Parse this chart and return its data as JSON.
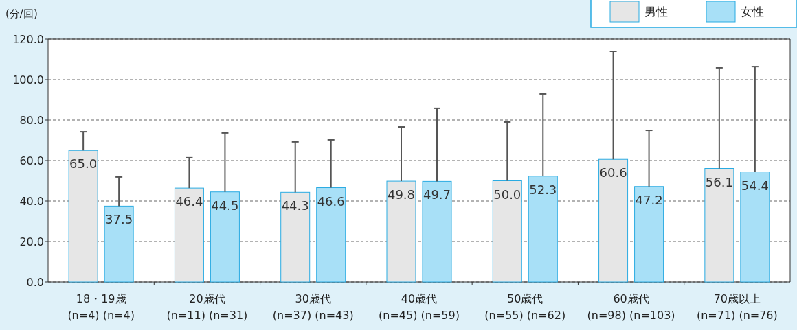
{
  "chart_data": {
    "type": "bar",
    "ylabel": "(分/回)",
    "categories": [
      "18・19歳\n(n=4) (n=4)",
      "20歳代\n(n=11) (n=31)",
      "30歳代\n(n=37) (n=43)",
      "40歳代\n(n=45) (n=59)",
      "50歳代\n(n=55) (n=62)",
      "60歳代\n(n=98) (n=103)",
      "70歳以上\n(n=71) (n=76)"
    ],
    "series": [
      {
        "name": "男性",
        "color": "#e6e6e6",
        "values": [
          65.0,
          46.4,
          44.3,
          49.8,
          50.0,
          60.6,
          56.1
        ],
        "value_labels": [
          "65.0",
          "46.4",
          "44.3",
          "49.8",
          "50.0",
          "60.6",
          "56.1"
        ],
        "errors": [
          [
            65.0,
            74.2
          ],
          [
            46.4,
            61.4
          ],
          [
            44.3,
            69.2
          ],
          [
            49.8,
            76.6
          ],
          [
            50.0,
            79.0
          ],
          [
            60.6,
            113.9
          ],
          [
            56.1,
            105.8
          ]
        ]
      },
      {
        "name": "女性",
        "color": "#a8e0f7",
        "values": [
          37.5,
          44.5,
          46.6,
          49.7,
          52.3,
          47.2,
          54.4
        ],
        "value_labels": [
          "37.5",
          "44.5",
          "46.6",
          "49.7",
          "52.3",
          "47.2",
          "54.4"
        ],
        "errors": [
          [
            37.5,
            51.9
          ],
          [
            44.5,
            73.6
          ],
          [
            46.6,
            70.2
          ],
          [
            49.7,
            85.8
          ],
          [
            52.3,
            92.9
          ],
          [
            47.2,
            74.9
          ],
          [
            54.4,
            106.4
          ]
        ]
      }
    ],
    "ylim": [
      0,
      120
    ],
    "yticks": [
      {
        "value": 0,
        "label": "0.0"
      },
      {
        "value": 20,
        "label": "20.0"
      },
      {
        "value": 40,
        "label": "40.0"
      },
      {
        "value": 60,
        "label": "60.0"
      },
      {
        "value": 80,
        "label": "80.0"
      },
      {
        "value": 100,
        "label": "100.0"
      },
      {
        "value": 120,
        "label": "120.0"
      }
    ],
    "grid": "y",
    "line_style": "dashed",
    "legend": "top right"
  }
}
